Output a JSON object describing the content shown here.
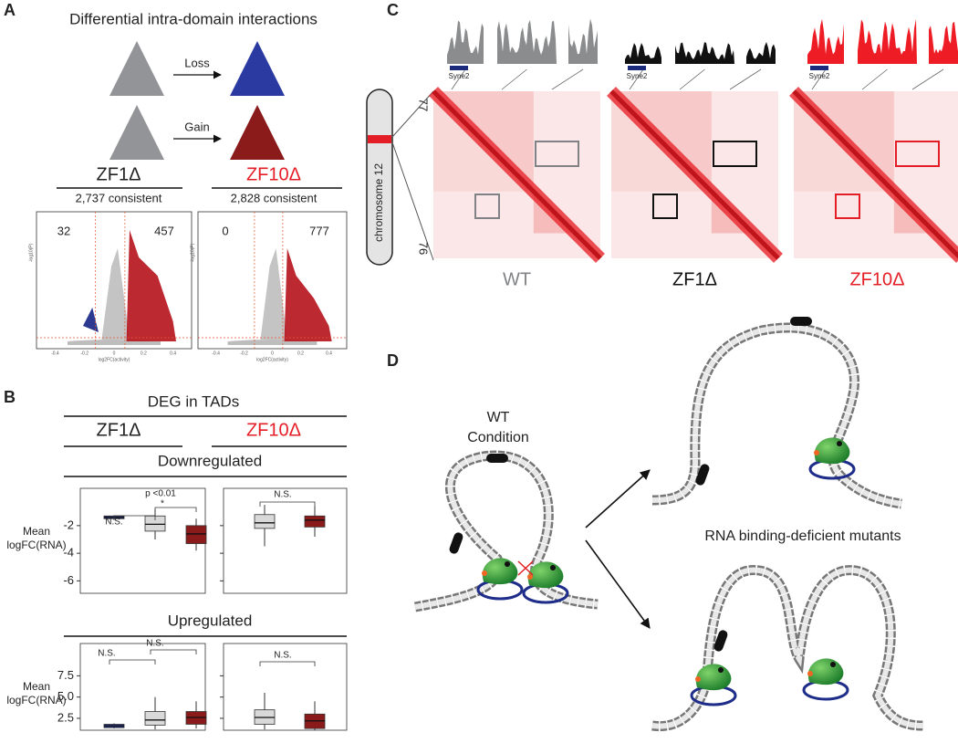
{
  "panel_labels": [
    "A",
    "B",
    "C",
    "D"
  ],
  "panel_a": {
    "title": "Differential intra-domain interactions",
    "loss_label": "Loss",
    "gain_label": "Gain",
    "conditions": [
      {
        "name": "ZF1Δ",
        "consistent": "2,737 consistent",
        "left_count": 32,
        "right_count": 457
      },
      {
        "name": "ZF10Δ",
        "consistent": "2,828 consistent",
        "left_count": 0,
        "right_count": 777
      }
    ],
    "volcano_x_label": "log2FC(activity)",
    "volcano_y_label": "-log10(P)",
    "volcano_x_ticks": [
      "-0.4",
      "-0.2",
      "0",
      "0.2",
      "0.4"
    ]
  },
  "panel_b": {
    "title": "DEG in TADs",
    "conditions": [
      "ZF1Δ",
      "ZF10Δ"
    ],
    "downregulated": "Downregulated",
    "upregulated": "Upregulated",
    "y_label": "Mean logFC(RNA)",
    "plots": [
      {
        "ylim": [
          -6.9,
          0.7
        ],
        "yticks": [
          -2,
          -4,
          -6
        ],
        "annotations": [
          "N.S.",
          "p <0.01",
          "*"
        ],
        "boxes": [
          {
            "color": "#2b3990",
            "low": -1.55,
            "q1": -1.5,
            "median": -1.4,
            "q3": -1.3,
            "high": -1.25
          },
          {
            "color": "#d9d9d9",
            "low": -3.0,
            "q1": -2.4,
            "median": -1.9,
            "q3": -1.3,
            "high": -0.8
          },
          {
            "color": "#8b1a1a",
            "low": -3.8,
            "q1": -3.3,
            "median": -2.6,
            "q3": -2.0,
            "high": -1.5
          }
        ]
      },
      {
        "ylim": [
          -6.9,
          0.7
        ],
        "annotations": [
          "N.S."
        ],
        "boxes": [
          {
            "color": "#d9d9d9",
            "low": -3.5,
            "q1": -2.2,
            "median": -1.8,
            "q3": -1.2,
            "high": -0.5
          },
          {
            "color": "#8b1a1a",
            "low": -2.8,
            "q1": -2.1,
            "median": -1.6,
            "q3": -1.3,
            "high": -0.6
          }
        ]
      },
      {
        "ylim": [
          1.1,
          11.3
        ],
        "yticks": [
          7.5,
          {
            "value": 5,
            "label": "5.0"
          },
          2.5
        ],
        "annotations": [
          "N.S.",
          "N.S."
        ],
        "boxes": [
          {
            "color": "#2b3990",
            "low": 1.3,
            "q1": 1.4,
            "median": 1.6,
            "q3": 1.8,
            "high": 1.9
          },
          {
            "color": "#d9d9d9",
            "low": 1.2,
            "q1": 1.7,
            "median": 2.3,
            "q3": 3.3,
            "high": 5.0
          },
          {
            "color": "#8b1a1a",
            "low": 1.3,
            "q1": 1.8,
            "median": 2.6,
            "q3": 3.3,
            "high": 4.5
          }
        ]
      },
      {
        "ylim": [
          1.1,
          11.3
        ],
        "annotations": [
          "N.S."
        ],
        "boxes": [
          {
            "color": "#d9d9d9",
            "low": 1.2,
            "q1": 1.8,
            "median": 2.6,
            "q3": 3.5,
            "high": 5.5
          },
          {
            "color": "#8b1a1a",
            "low": 1.1,
            "q1": 1.3,
            "median": 2.2,
            "q3": 3.0,
            "high": 4.5
          }
        ]
      }
    ]
  },
  "panel_c": {
    "chromosome": "chromosome 12",
    "coord_top": 77,
    "coord_bottom": 76,
    "gene": "Syne2",
    "maps": [
      "WT",
      "ZF1Δ",
      "ZF10Δ"
    ]
  },
  "panel_d": {
    "wt_label": [
      "WT",
      "Condition"
    ],
    "mutant_label": "RNA binding-deficient mutants"
  }
}
